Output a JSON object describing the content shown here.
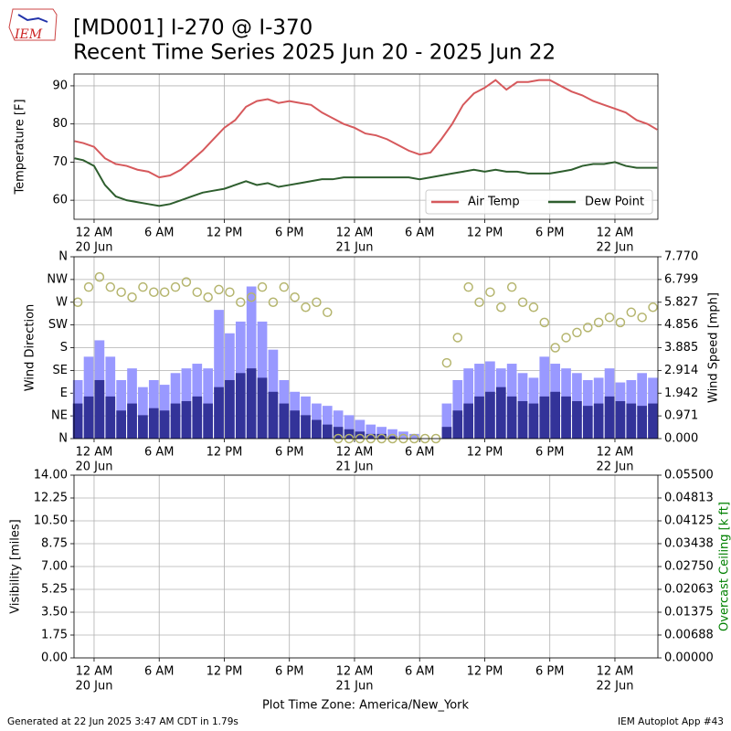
{
  "header": {
    "title": "[MD001] I-270 @ I-370",
    "subtitle": "Recent Time Series 2025 Jun 20 - 2025 Jun 22",
    "logo_text": "IEM"
  },
  "footer": {
    "xlabel": "Plot Time Zone: America/New_York",
    "generated": "Generated at 22 Jun 2025 3:47 AM CDT in 1.79s",
    "app": "IEM Autoplot App #43"
  },
  "chart_data": [
    {
      "type": "line",
      "ylabel": "Temperature [F]",
      "grid": true,
      "legend": "lower right",
      "xlim": [
        -1.85,
        51.96
      ],
      "ylim": [
        55,
        93.1
      ],
      "yticks": [
        60,
        70,
        80,
        90
      ],
      "xticks": [
        {
          "value": 0,
          "label": "12 AM",
          "date": "20 Jun"
        },
        {
          "value": 6,
          "label": "6 AM"
        },
        {
          "value": 12,
          "label": "12 PM"
        },
        {
          "value": 18,
          "label": "6 PM"
        },
        {
          "value": 24,
          "label": "12 AM",
          "date": "21 Jun"
        },
        {
          "value": 30,
          "label": "6 AM"
        },
        {
          "value": 36,
          "label": "12 PM"
        },
        {
          "value": 42,
          "label": "6 PM"
        },
        {
          "value": 48,
          "label": "12 AM",
          "date": "22 Jun"
        }
      ],
      "x": [
        -1.8,
        -1,
        0,
        1,
        2,
        3,
        4,
        5,
        6,
        7,
        8,
        9,
        10,
        11,
        12,
        13,
        14,
        15,
        16,
        17,
        18,
        19,
        20,
        21,
        22,
        23,
        24,
        25,
        26,
        27,
        28,
        29,
        30,
        31,
        32,
        33,
        34,
        35,
        36,
        37,
        38,
        39,
        40,
        41,
        42,
        43,
        44,
        45,
        46,
        47,
        48,
        49,
        50,
        51,
        51.9
      ],
      "series": [
        {
          "name": "Air Temp",
          "color": "#d6595c",
          "values": [
            75.5,
            75,
            74,
            71,
            69.5,
            69,
            68,
            67.5,
            66,
            66.5,
            68,
            70.5,
            73,
            76,
            79,
            81,
            84.5,
            86,
            86.5,
            85.5,
            86,
            85.5,
            85,
            83,
            81.5,
            80,
            79,
            77.5,
            77,
            76,
            74.5,
            73,
            72,
            72.5,
            76,
            80,
            85,
            88,
            89.5,
            91.5,
            89,
            91,
            91,
            91.5,
            91.5,
            90,
            88.5,
            87.5,
            86,
            85,
            84,
            83,
            81,
            80,
            78.5
          ]
        },
        {
          "name": "Dew Point",
          "color": "#2e5e2e",
          "values": [
            71,
            70.5,
            69,
            64,
            61,
            60,
            59.5,
            59,
            58.5,
            59,
            60,
            61,
            62,
            62.5,
            63,
            64,
            65,
            64,
            64.5,
            63.5,
            64,
            64.5,
            65,
            65.5,
            65.5,
            66,
            66,
            66,
            66,
            66,
            66,
            66,
            65.5,
            66,
            66.5,
            67,
            67.5,
            68,
            67.5,
            68,
            67.5,
            67.5,
            67,
            67,
            67,
            67.5,
            68,
            69,
            69.5,
            69.5,
            70,
            69,
            68.5,
            68.5,
            68.5
          ]
        }
      ]
    },
    {
      "type": "bar",
      "ylabel": "Wind Direction",
      "y2label": "Wind Speed [mph]",
      "grid": true,
      "xlim": [
        -1.85,
        51.96
      ],
      "ylim": [
        0,
        360
      ],
      "y2lim": [
        0,
        7.77
      ],
      "yticks": [
        {
          "value": 0,
          "label": "N"
        },
        {
          "value": 45,
          "label": "NE"
        },
        {
          "value": 90,
          "label": "E"
        },
        {
          "value": 135,
          "label": "SE"
        },
        {
          "value": 180,
          "label": "S"
        },
        {
          "value": 225,
          "label": "SW"
        },
        {
          "value": 270,
          "label": "W"
        },
        {
          "value": 315,
          "label": "NW"
        },
        {
          "value": 360,
          "label": "N"
        }
      ],
      "y2ticks": [
        {
          "value": 0,
          "label": "0.000"
        },
        0.971,
        1.942,
        2.914,
        3.885,
        4.856,
        5.827,
        6.799,
        {
          "value": 7.77,
          "label": "7.770"
        }
      ],
      "xticks": [
        {
          "value": 0,
          "label": "12 AM",
          "date": "20 Jun"
        },
        {
          "value": 6,
          "label": "6 AM"
        },
        {
          "value": 12,
          "label": "12 PM"
        },
        {
          "value": 18,
          "label": "6 PM"
        },
        {
          "value": 24,
          "label": "12 AM",
          "date": "21 Jun"
        },
        {
          "value": 30,
          "label": "6 AM"
        },
        {
          "value": 36,
          "label": "12 PM"
        },
        {
          "value": 42,
          "label": "6 PM"
        },
        {
          "value": 48,
          "label": "12 AM",
          "date": "22 Jun"
        }
      ],
      "x": [
        -1.5,
        -0.5,
        0.5,
        1.5,
        2.5,
        3.5,
        4.5,
        5.5,
        6.5,
        7.5,
        8.5,
        9.5,
        10.5,
        11.5,
        12.5,
        13.5,
        14.5,
        15.5,
        16.5,
        17.5,
        18.5,
        19.5,
        20.5,
        21.5,
        22.5,
        23.5,
        24.5,
        25.5,
        26.5,
        27.5,
        28.5,
        29.5,
        30.5,
        31.5,
        32.5,
        33.5,
        34.5,
        35.5,
        36.5,
        37.5,
        38.5,
        39.5,
        40.5,
        41.5,
        42.5,
        43.5,
        44.5,
        45.5,
        46.5,
        47.5,
        48.5,
        49.5,
        50.5,
        51.5
      ],
      "series": [
        {
          "type": "bar",
          "axis": "y2",
          "color": "#9999ff",
          "values": [
            2.5,
            3.5,
            4.2,
            3.5,
            2.5,
            3.0,
            2.2,
            2.5,
            2.3,
            2.8,
            3.0,
            3.2,
            3.0,
            5.5,
            4.5,
            5.0,
            6.5,
            5.0,
            3.8,
            2.5,
            2.0,
            1.8,
            1.5,
            1.4,
            1.2,
            1.0,
            0.8,
            0.6,
            0.5,
            0.4,
            0.3,
            0.2,
            0,
            0,
            1.5,
            2.5,
            3.0,
            3.2,
            3.3,
            3.0,
            3.2,
            2.8,
            2.6,
            3.5,
            3.2,
            3.0,
            2.8,
            2.5,
            2.6,
            3.0,
            2.4,
            2.5,
            2.8,
            2.6
          ]
        },
        {
          "type": "bar",
          "axis": "y2",
          "color": "#333399",
          "values": [
            1.5,
            1.8,
            2.5,
            1.8,
            1.2,
            1.5,
            1.0,
            1.3,
            1.2,
            1.5,
            1.6,
            1.8,
            1.5,
            2.2,
            2.5,
            2.8,
            3.0,
            2.6,
            2.0,
            1.5,
            1.2,
            1.0,
            0.8,
            0.6,
            0.5,
            0.4,
            0.3,
            0.2,
            0.2,
            0.1,
            0,
            0,
            0,
            0,
            0.5,
            1.2,
            1.5,
            1.8,
            2.0,
            2.2,
            1.8,
            1.6,
            1.5,
            1.8,
            2.0,
            1.8,
            1.6,
            1.4,
            1.5,
            1.8,
            1.6,
            1.5,
            1.4,
            1.5
          ]
        },
        {
          "type": "scatter",
          "color": "#b5b56e",
          "values": [
            270,
            300,
            320,
            300,
            290,
            280,
            300,
            290,
            290,
            300,
            310,
            290,
            280,
            295,
            290,
            270,
            280,
            300,
            270,
            300,
            280,
            260,
            270,
            250,
            0,
            0,
            0,
            0,
            0,
            0,
            0,
            0,
            0,
            0,
            150,
            200,
            300,
            270,
            290,
            260,
            300,
            270,
            260,
            230,
            180,
            200,
            210,
            220,
            230,
            240,
            230,
            250,
            240,
            260
          ]
        }
      ]
    },
    {
      "type": "line",
      "ylabel": "Visibility [miles]",
      "y2label": "Overcast Ceiling [k ft]",
      "y2color": "#008000",
      "grid": true,
      "xlim": [
        -1.85,
        51.96
      ],
      "ylim": [
        0,
        14
      ],
      "y2lim": [
        0,
        0.055
      ],
      "yticks": [
        {
          "value": 0,
          "label": "0.00"
        },
        1.75,
        {
          "value": 3.5,
          "label": "3.50"
        },
        5.25,
        {
          "value": 7,
          "label": "7.00"
        },
        8.75,
        {
          "value": 10.5,
          "label": "10.50"
        },
        12.25,
        {
          "value": 14,
          "label": "14.00"
        }
      ],
      "y2ticks": [
        {
          "value": 0,
          "label": "0.00000"
        },
        0.00688,
        0.01375,
        0.02063,
        {
          "value": 0.0275,
          "label": "0.02750"
        },
        0.03438,
        0.04125,
        0.04813,
        {
          "value": 0.055,
          "label": "0.05500"
        }
      ],
      "xticks": [
        {
          "value": 0,
          "label": "12 AM",
          "date": "20 Jun"
        },
        {
          "value": 6,
          "label": "6 AM"
        },
        {
          "value": 12,
          "label": "12 PM"
        },
        {
          "value": 18,
          "label": "6 PM"
        },
        {
          "value": 24,
          "label": "12 AM",
          "date": "21 Jun"
        },
        {
          "value": 30,
          "label": "6 AM"
        },
        {
          "value": 36,
          "label": "12 PM"
        },
        {
          "value": 42,
          "label": "6 PM"
        },
        {
          "value": 48,
          "label": "12 AM",
          "date": "22 Jun"
        }
      ],
      "series": []
    }
  ]
}
